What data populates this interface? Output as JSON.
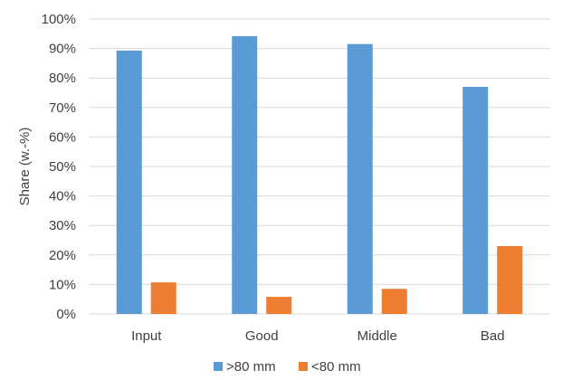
{
  "chart_data": {
    "type": "bar",
    "title": "",
    "xlabel": "",
    "ylabel": "Share (w.-%)",
    "ylim": [
      0,
      100
    ],
    "yticks": [
      0,
      10,
      20,
      30,
      40,
      50,
      60,
      70,
      80,
      90,
      100
    ],
    "ytick_suffix": "%",
    "grid": true,
    "legend_position": "bottom",
    "categories": [
      "Input",
      "Good",
      "Middle",
      "Bad"
    ],
    "series": [
      {
        "name": ">80 mm",
        "color": "#5b9bd5",
        "values": [
          89.3,
          94.2,
          91.5,
          77.0
        ]
      },
      {
        "name": "<80 mm",
        "color": "#ed7d31",
        "values": [
          10.7,
          5.8,
          8.5,
          23.0
        ]
      }
    ]
  }
}
